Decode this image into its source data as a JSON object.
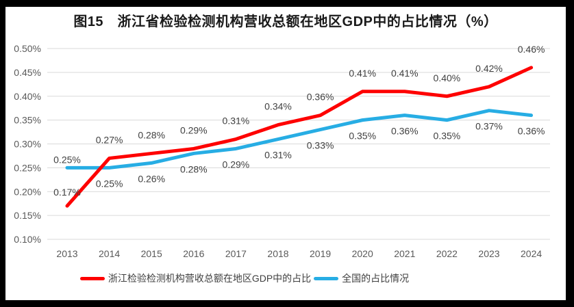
{
  "title": "图15　浙江省检验检测机构营收总额在地区GDP中的占比情况（%）",
  "colors": {
    "frame": "#000000",
    "panel_background": "#ffffff",
    "gridline": "#d9d9d9",
    "tick_text": "#595959",
    "data_label_text": "#3f3f3f",
    "title_text": "#1a1a1a"
  },
  "chart_data": {
    "type": "line",
    "x": [
      "2013",
      "2014",
      "2015",
      "2016",
      "2017",
      "2018",
      "2019",
      "2020",
      "2021",
      "2022",
      "2023",
      "2024"
    ],
    "series": [
      {
        "name": "浙江检验检测机构营收总额在地区GDP中的占比",
        "color": "#fe0000",
        "values": [
          0.17,
          0.27,
          0.28,
          0.29,
          0.31,
          0.34,
          0.36,
          0.41,
          0.41,
          0.4,
          0.42,
          0.46
        ],
        "labels": [
          "0.17%",
          "0.27%",
          "0.28%",
          "0.29%",
          "0.31%",
          "0.34%",
          "0.36%",
          "0.41%",
          "0.41%",
          "0.40%",
          "0.42%",
          "0.46%"
        ],
        "label_offsets": [
          -15,
          -22,
          -22,
          -22,
          -22,
          -22,
          -22,
          -22,
          -22,
          -22,
          -22,
          -22
        ]
      },
      {
        "name": "全国的占比情况",
        "color": "#27ade4",
        "values": [
          0.25,
          0.25,
          0.26,
          0.28,
          0.29,
          0.31,
          0.33,
          0.35,
          0.36,
          0.35,
          0.37,
          0.36
        ],
        "labels": [
          "0.25%",
          "0.25%",
          "0.26%",
          "0.28%",
          "0.29%",
          "0.31%",
          "0.33%",
          "0.35%",
          "0.36%",
          "0.35%",
          "0.37%",
          "0.36%"
        ],
        "label_offsets": [
          -7,
          28,
          28,
          28,
          28,
          28,
          28,
          28,
          28,
          28,
          28,
          28
        ]
      }
    ],
    "ylim": [
      0.1,
      0.5
    ],
    "ytick_labels": [
      "0.50%",
      "0.45%",
      "0.40%",
      "0.35%",
      "0.30%",
      "0.25%",
      "0.20%",
      "0.15%",
      "0.10%"
    ],
    "grid": true,
    "legend_position": "bottom",
    "xlabel": "",
    "ylabel": ""
  }
}
